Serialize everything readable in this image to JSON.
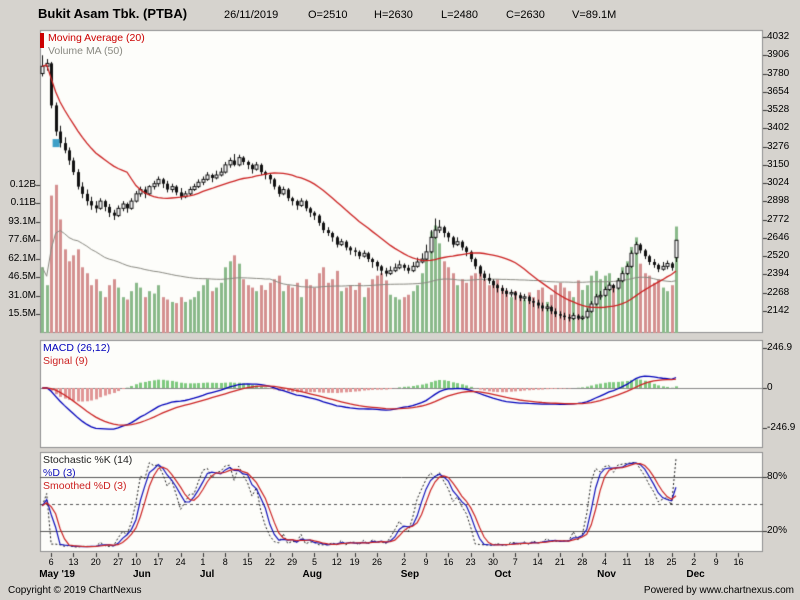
{
  "header": {
    "title": "Bukit Asam Tbk. (PTBA)",
    "date": "26/11/2019",
    "open": "O=2510",
    "high": "H=2630",
    "low": "L=2480",
    "close": "C=2630",
    "volume": "V=89.1M"
  },
  "footer": {
    "copyright": "Copyright © 2019 ChartNexus",
    "powered": "Powered by www.chartnexus.com"
  },
  "panels": {
    "main": {
      "marker_color": "#cc0000",
      "legend": [
        {
          "label": "Moving Average (20)",
          "color": "#cc0000"
        },
        {
          "label": "Volume MA (50)",
          "color": "#8a8a82"
        }
      ]
    },
    "macd": {
      "legend": [
        {
          "label": "MACD (26,12)",
          "color": "#0000bb"
        },
        {
          "label": "Signal (9)",
          "color": "#cc2222"
        }
      ]
    },
    "stoch": {
      "legend": [
        {
          "label": "Stochastic %K (14)",
          "color": "#222222"
        },
        {
          "label": "%D (3)",
          "color": "#1111bb"
        },
        {
          "label": "Smoothed %D (3)",
          "color": "#cc2222"
        }
      ]
    }
  },
  "chart_data": {
    "type": "candlestick",
    "title": "Bukit Asam Tbk. (PTBA)",
    "last_quote": {
      "date": "26/11/2019",
      "open": 2510,
      "high": 2630,
      "low": 2480,
      "close": 2630,
      "volume_m": 89.1
    },
    "slots": 162,
    "indicators": {
      "ma": 20,
      "vol_ma": 50,
      "macd_fast": 12,
      "macd_slow": 26,
      "macd_signal": 9,
      "stoch_k": 14,
      "stoch_d": 3,
      "stoch_smooth": 3
    },
    "colors": {
      "up": "#ffffff",
      "down": "#111111",
      "wick": "#111111",
      "vol_up": "#8ab98a",
      "vol_down": "#d49090",
      "ma20": "#cc2222",
      "vol_ma": "#8a8a82",
      "macd": "#0000bb",
      "signal": "#cc2222",
      "hist_pos": "#7fc97f",
      "hist_neg": "#e09595",
      "stoch_k": "#222222",
      "stoch_d": "#1111bb",
      "stoch_sd": "#cc2222",
      "marker": "#3da0c8"
    },
    "marker": {
      "index": 3,
      "price": 3300
    },
    "price_ticks": [
      {
        "label": "4032",
        "v": 4032
      },
      {
        "label": "3906",
        "v": 3906
      },
      {
        "label": "3780",
        "v": 3780
      },
      {
        "label": "3654",
        "v": 3654
      },
      {
        "label": "3528",
        "v": 3528
      },
      {
        "label": "3402",
        "v": 3402
      },
      {
        "label": "3276",
        "v": 3276
      },
      {
        "label": "3150",
        "v": 3150
      },
      {
        "label": "3024",
        "v": 3024
      },
      {
        "label": "2898",
        "v": 2898
      },
      {
        "label": "2772",
        "v": 2772
      },
      {
        "label": "2646",
        "v": 2646
      },
      {
        "label": "2520",
        "v": 2520
      },
      {
        "label": "2394",
        "v": 2394
      },
      {
        "label": "2268",
        "v": 2268
      },
      {
        "label": "2142",
        "v": 2142
      }
    ],
    "volume_ticks": [
      {
        "label": "0.12B",
        "v": 124.2
      },
      {
        "label": "0.11B",
        "v": 108.6
      },
      {
        "label": "93.1M",
        "v": 93.1
      },
      {
        "label": "77.6M",
        "v": 77.6
      },
      {
        "label": "62.1M",
        "v": 62.1
      },
      {
        "label": "46.5M",
        "v": 46.5
      },
      {
        "label": "31.0M",
        "v": 31.0
      },
      {
        "label": "15.5M",
        "v": 15.5
      }
    ],
    "macd_ticks": [
      {
        "label": "246.9",
        "v": 246.9
      },
      {
        "label": "0",
        "v": 0
      },
      {
        "label": "-246.9",
        "v": -246.9
      }
    ],
    "stoch_ticks": [
      {
        "label": "80%",
        "v": 80
      },
      {
        "label": "20%",
        "v": 20
      }
    ],
    "x_day_ticks": [
      {
        "label": "6",
        "i": 2
      },
      {
        "label": "13",
        "i": 7
      },
      {
        "label": "20",
        "i": 12
      },
      {
        "label": "27",
        "i": 17
      },
      {
        "label": "10",
        "i": 21
      },
      {
        "label": "17",
        "i": 26
      },
      {
        "label": "24",
        "i": 31
      },
      {
        "label": "1",
        "i": 36
      },
      {
        "label": "8",
        "i": 41
      },
      {
        "label": "15",
        "i": 46
      },
      {
        "label": "22",
        "i": 51
      },
      {
        "label": "29",
        "i": 56
      },
      {
        "label": "5",
        "i": 61
      },
      {
        "label": "12",
        "i": 66
      },
      {
        "label": "19",
        "i": 70
      },
      {
        "label": "26",
        "i": 75
      },
      {
        "label": "2",
        "i": 81
      },
      {
        "label": "9",
        "i": 86
      },
      {
        "label": "16",
        "i": 91
      },
      {
        "label": "23",
        "i": 96
      },
      {
        "label": "30",
        "i": 101
      },
      {
        "label": "7",
        "i": 106
      },
      {
        "label": "14",
        "i": 111
      },
      {
        "label": "21",
        "i": 116
      },
      {
        "label": "28",
        "i": 121
      },
      {
        "label": "4",
        "i": 126
      },
      {
        "label": "11",
        "i": 131
      },
      {
        "label": "18",
        "i": 136
      },
      {
        "label": "25",
        "i": 141
      },
      {
        "label": "2",
        "i": 146
      },
      {
        "label": "9",
        "i": 151
      },
      {
        "label": "16",
        "i": 156
      }
    ],
    "x_month_labels": [
      {
        "label": "May '19",
        "i": 0
      },
      {
        "label": "Jun",
        "i": 21
      },
      {
        "label": "Jul",
        "i": 36
      },
      {
        "label": "Aug",
        "i": 59
      },
      {
        "label": "Sep",
        "i": 81
      },
      {
        "label": "Oct",
        "i": 102
      },
      {
        "label": "Nov",
        "i": 125
      },
      {
        "label": "Dec",
        "i": 145
      }
    ],
    "ohlcv": [
      [
        3780,
        3906,
        3760,
        3830,
        55
      ],
      [
        3830,
        3880,
        3800,
        3850,
        40
      ],
      [
        3850,
        3860,
        3540,
        3560,
        115
      ],
      [
        3560,
        3580,
        3350,
        3380,
        124
      ],
      [
        3380,
        3420,
        3270,
        3300,
        95
      ],
      [
        3300,
        3340,
        3230,
        3250,
        70
      ],
      [
        3250,
        3270,
        3150,
        3180,
        60
      ],
      [
        3180,
        3200,
        3080,
        3100,
        65
      ],
      [
        3100,
        3120,
        2980,
        3000,
        70
      ],
      [
        3000,
        3030,
        2920,
        2950,
        55
      ],
      [
        2950,
        2980,
        2870,
        2900,
        50
      ],
      [
        2900,
        2930,
        2840,
        2870,
        40
      ],
      [
        2870,
        2900,
        2820,
        2850,
        45
      ],
      [
        2850,
        2920,
        2840,
        2900,
        35
      ],
      [
        2900,
        2910,
        2830,
        2860,
        30
      ],
      [
        2860,
        2880,
        2790,
        2820,
        40
      ],
      [
        2820,
        2840,
        2770,
        2800,
        45
      ],
      [
        2800,
        2870,
        2790,
        2850,
        38
      ],
      [
        2850,
        2900,
        2830,
        2880,
        30
      ],
      [
        2880,
        2890,
        2820,
        2850,
        28
      ],
      [
        2850,
        2920,
        2840,
        2900,
        35
      ],
      [
        2900,
        2970,
        2890,
        2950,
        42
      ],
      [
        2950,
        3000,
        2930,
        2980,
        38
      ],
      [
        2980,
        3000,
        2920,
        2950,
        30
      ],
      [
        2950,
        3010,
        2940,
        3000,
        35
      ],
      [
        3000,
        3040,
        2980,
        3020,
        33
      ],
      [
        3020,
        3070,
        3000,
        3050,
        40
      ],
      [
        3050,
        3060,
        2990,
        3020,
        30
      ],
      [
        3020,
        3040,
        2960,
        2980,
        28
      ],
      [
        2980,
        3020,
        2960,
        3000,
        26
      ],
      [
        3000,
        3010,
        2940,
        2960,
        25
      ],
      [
        2960,
        2990,
        2910,
        2930,
        30
      ],
      [
        2930,
        2970,
        2920,
        2950,
        26
      ],
      [
        2950,
        3000,
        2940,
        2980,
        28
      ],
      [
        2980,
        3020,
        2970,
        3000,
        30
      ],
      [
        3000,
        3050,
        2990,
        3030,
        35
      ],
      [
        3030,
        3070,
        3010,
        3050,
        40
      ],
      [
        3050,
        3100,
        3040,
        3080,
        45
      ],
      [
        3080,
        3090,
        3030,
        3060,
        35
      ],
      [
        3060,
        3110,
        3050,
        3080,
        38
      ],
      [
        3080,
        3130,
        3070,
        3100,
        42
      ],
      [
        3100,
        3170,
        3090,
        3150,
        55
      ],
      [
        3150,
        3200,
        3130,
        3180,
        60
      ],
      [
        3180,
        3225,
        3140,
        3150,
        65
      ],
      [
        3150,
        3220,
        3140,
        3200,
        58
      ],
      [
        3200,
        3210,
        3150,
        3170,
        45
      ],
      [
        3170,
        3180,
        3120,
        3150,
        40
      ],
      [
        3150,
        3160,
        3090,
        3120,
        38
      ],
      [
        3120,
        3170,
        3110,
        3150,
        35
      ],
      [
        3150,
        3160,
        3080,
        3100,
        40
      ],
      [
        3100,
        3110,
        3050,
        3080,
        36
      ],
      [
        3080,
        3090,
        3020,
        3050,
        42
      ],
      [
        3050,
        3060,
        2980,
        3000,
        45
      ],
      [
        3000,
        3010,
        2930,
        2950,
        48
      ],
      [
        2950,
        3000,
        2940,
        2980,
        35
      ],
      [
        2980,
        2990,
        2900,
        2920,
        40
      ],
      [
        2920,
        2930,
        2870,
        2900,
        38
      ],
      [
        2900,
        2910,
        2840,
        2870,
        42
      ],
      [
        2870,
        2920,
        2860,
        2900,
        30
      ],
      [
        2900,
        2910,
        2830,
        2850,
        45
      ],
      [
        2850,
        2860,
        2790,
        2820,
        40
      ],
      [
        2820,
        2830,
        2770,
        2800,
        38
      ],
      [
        2800,
        2810,
        2730,
        2750,
        50
      ],
      [
        2750,
        2760,
        2680,
        2700,
        55
      ],
      [
        2700,
        2720,
        2660,
        2680,
        42
      ],
      [
        2680,
        2690,
        2620,
        2650,
        45
      ],
      [
        2650,
        2660,
        2580,
        2600,
        52
      ],
      [
        2600,
        2640,
        2590,
        2620,
        35
      ],
      [
        2620,
        2630,
        2560,
        2580,
        38
      ],
      [
        2580,
        2590,
        2530,
        2560,
        40
      ],
      [
        2560,
        2580,
        2520,
        2550,
        36
      ],
      [
        2550,
        2560,
        2500,
        2520,
        42
      ],
      [
        2520,
        2560,
        2510,
        2540,
        30
      ],
      [
        2540,
        2550,
        2480,
        2500,
        38
      ],
      [
        2500,
        2510,
        2440,
        2480,
        45
      ],
      [
        2480,
        2490,
        2420,
        2450,
        48
      ],
      [
        2450,
        2460,
        2390,
        2420,
        50
      ],
      [
        2420,
        2440,
        2380,
        2400,
        44
      ],
      [
        2400,
        2450,
        2390,
        2420,
        32
      ],
      [
        2420,
        2470,
        2410,
        2440,
        30
      ],
      [
        2440,
        2490,
        2430,
        2460,
        28
      ],
      [
        2460,
        2470,
        2420,
        2440,
        30
      ],
      [
        2440,
        2460,
        2400,
        2420,
        32
      ],
      [
        2420,
        2480,
        2410,
        2450,
        35
      ],
      [
        2450,
        2510,
        2440,
        2480,
        40
      ],
      [
        2480,
        2540,
        2470,
        2500,
        50
      ],
      [
        2500,
        2600,
        2490,
        2550,
        65
      ],
      [
        2550,
        2700,
        2540,
        2650,
        85
      ],
      [
        2650,
        2780,
        2640,
        2700,
        90
      ],
      [
        2700,
        2770,
        2680,
        2720,
        75
      ],
      [
        2720,
        2730,
        2650,
        2680,
        60
      ],
      [
        2680,
        2690,
        2620,
        2650,
        55
      ],
      [
        2650,
        2660,
        2580,
        2600,
        50
      ],
      [
        2600,
        2650,
        2590,
        2620,
        40
      ],
      [
        2620,
        2630,
        2560,
        2580,
        45
      ],
      [
        2580,
        2590,
        2520,
        2550,
        42
      ],
      [
        2550,
        2560,
        2480,
        2500,
        48
      ],
      [
        2500,
        2510,
        2430,
        2450,
        50
      ],
      [
        2450,
        2460,
        2380,
        2400,
        52
      ],
      [
        2400,
        2420,
        2350,
        2370,
        45
      ],
      [
        2370,
        2400,
        2330,
        2350,
        40
      ],
      [
        2350,
        2360,
        2300,
        2320,
        42
      ],
      [
        2320,
        2330,
        2270,
        2300,
        45
      ],
      [
        2300,
        2320,
        2260,
        2280,
        38
      ],
      [
        2280,
        2300,
        2240,
        2260,
        36
      ],
      [
        2260,
        2290,
        2240,
        2270,
        30
      ],
      [
        2270,
        2280,
        2220,
        2250,
        35
      ],
      [
        2250,
        2270,
        2210,
        2230,
        32
      ],
      [
        2230,
        2260,
        2210,
        2240,
        28
      ],
      [
        2240,
        2250,
        2190,
        2210,
        34
      ],
      [
        2210,
        2230,
        2170,
        2200,
        30
      ],
      [
        2200,
        2220,
        2160,
        2180,
        36
      ],
      [
        2180,
        2200,
        2140,
        2160,
        38
      ],
      [
        2160,
        2190,
        2140,
        2170,
        26
      ],
      [
        2170,
        2180,
        2120,
        2140,
        32
      ],
      [
        2140,
        2160,
        2100,
        2120,
        40
      ],
      [
        2120,
        2140,
        2090,
        2110,
        42
      ],
      [
        2110,
        2130,
        2080,
        2100,
        38
      ],
      [
        2100,
        2120,
        2070,
        2090,
        35
      ],
      [
        2090,
        2130,
        2080,
        2110,
        30
      ],
      [
        2110,
        2120,
        2080,
        2090,
        44
      ],
      [
        2090,
        2110,
        2080,
        2100,
        36
      ],
      [
        2100,
        2160,
        2090,
        2140,
        40
      ],
      [
        2140,
        2210,
        2130,
        2190,
        48
      ],
      [
        2190,
        2260,
        2180,
        2240,
        52
      ],
      [
        2240,
        2280,
        2220,
        2250,
        45
      ],
      [
        2250,
        2310,
        2240,
        2290,
        48
      ],
      [
        2290,
        2340,
        2280,
        2320,
        50
      ],
      [
        2320,
        2330,
        2270,
        2300,
        40
      ],
      [
        2300,
        2370,
        2290,
        2350,
        46
      ],
      [
        2350,
        2420,
        2340,
        2400,
        55
      ],
      [
        2400,
        2470,
        2390,
        2450,
        60
      ],
      [
        2450,
        2560,
        2440,
        2540,
        72
      ],
      [
        2540,
        2620,
        2530,
        2600,
        80
      ],
      [
        2600,
        2610,
        2540,
        2560,
        58
      ],
      [
        2560,
        2570,
        2500,
        2520,
        50
      ],
      [
        2520,
        2530,
        2460,
        2480,
        48
      ],
      [
        2480,
        2500,
        2440,
        2460,
        42
      ],
      [
        2460,
        2470,
        2410,
        2430,
        45
      ],
      [
        2430,
        2480,
        2420,
        2450,
        38
      ],
      [
        2450,
        2490,
        2430,
        2470,
        35
      ],
      [
        2470,
        2480,
        2420,
        2440,
        40
      ],
      [
        2510,
        2630,
        2480,
        2630,
        89.1
      ]
    ]
  }
}
